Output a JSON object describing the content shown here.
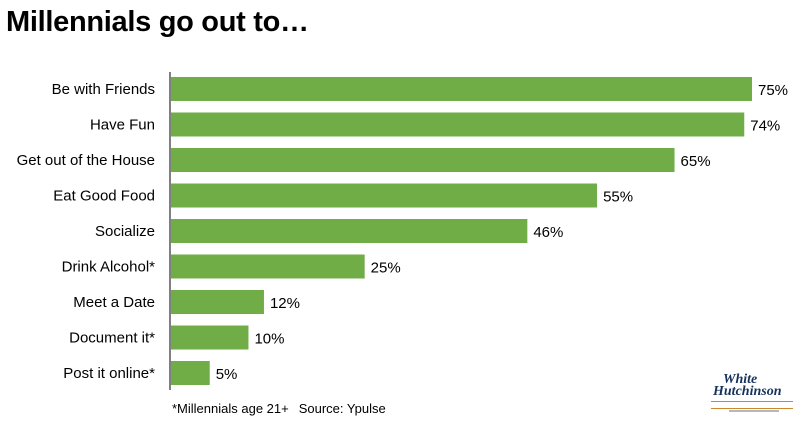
{
  "title": "Millennials go out to…",
  "footnote": "*Millennials age 21+",
  "source": "Source: Ypulse",
  "logo": {
    "line1": "White",
    "line2": "Hutchinson"
  },
  "colors": {
    "bar": "#70ad47",
    "axis": "#000000",
    "logo_text": "#16325c",
    "logo_accent": "#c98a2e"
  },
  "chart_data": {
    "type": "bar",
    "orientation": "horizontal",
    "categories": [
      "Be with Friends",
      "Have Fun",
      "Get out of the House",
      "Eat Good Food",
      "Socialize",
      "Drink Alcohol*",
      "Meet a Date",
      "Document it*",
      "Post it online*"
    ],
    "values": [
      75,
      74,
      65,
      55,
      46,
      25,
      12,
      10,
      5
    ],
    "data_labels": [
      "75%",
      "74%",
      "65%",
      "55%",
      "46%",
      "25%",
      "12%",
      "10%",
      "5%"
    ],
    "xlim": [
      0,
      100
    ],
    "grid": false,
    "legend": "none"
  }
}
